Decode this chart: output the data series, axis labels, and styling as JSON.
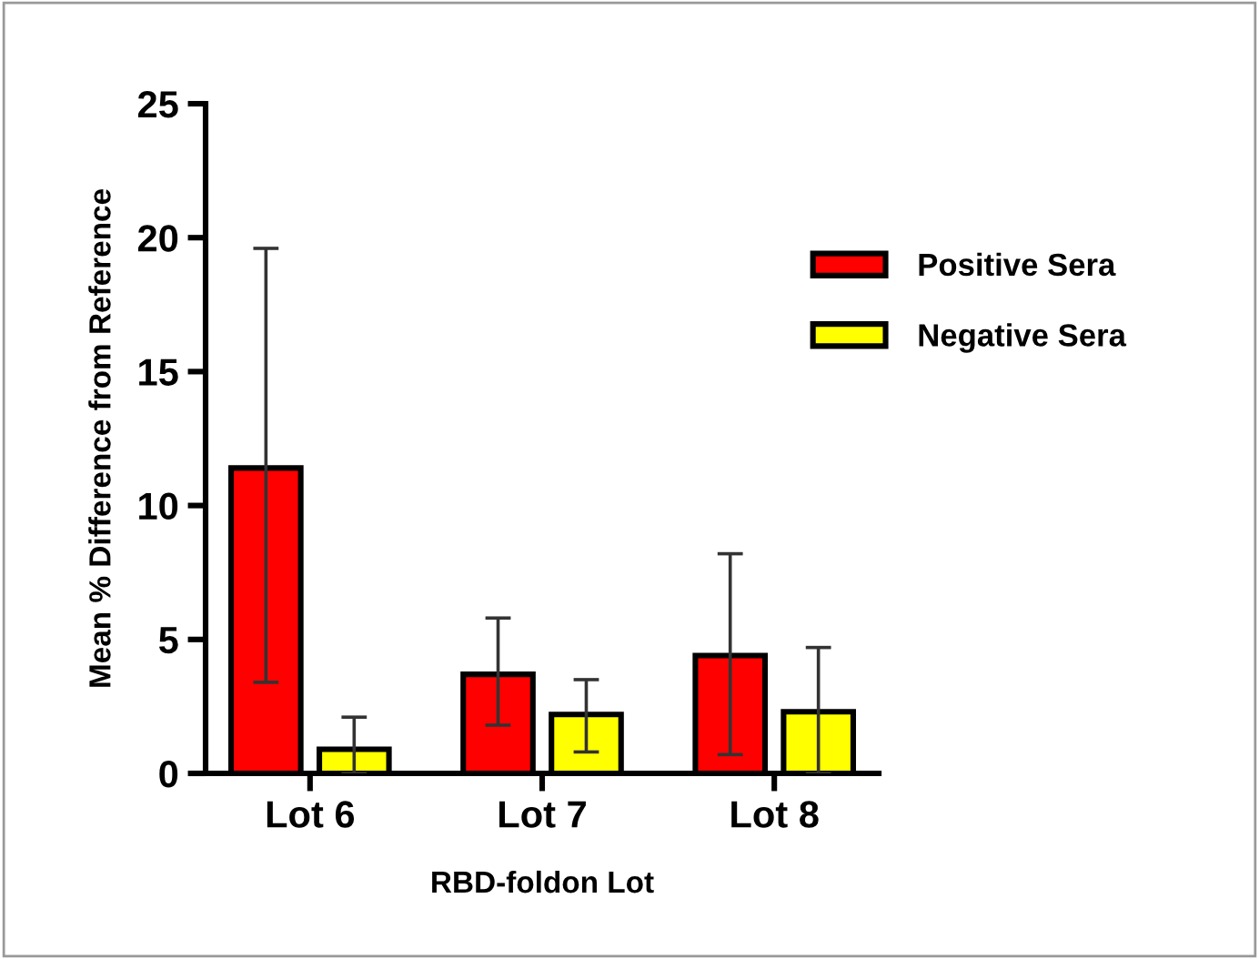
{
  "chart_data": {
    "type": "bar",
    "xlabel": "RBD-foldon Lot",
    "ylabel": "Mean % Difference from Reference",
    "categories": [
      "Lot 6",
      "Lot 7",
      "Lot 8"
    ],
    "series": [
      {
        "name": "Positive Sera",
        "color": "#ff0000",
        "values": [
          11.4,
          3.7,
          4.4
        ],
        "errors": [
          [
            3.4,
            19.6
          ],
          [
            1.8,
            5.8
          ],
          [
            0.7,
            8.2
          ]
        ]
      },
      {
        "name": "Negative Sera",
        "color": "#ffff00",
        "values": [
          0.9,
          2.2,
          2.3
        ],
        "errors": [
          [
            0,
            2.1
          ],
          [
            0.8,
            3.5
          ],
          [
            0,
            4.7
          ]
        ]
      }
    ],
    "ylim": [
      0,
      25
    ],
    "yticks": [
      0,
      5,
      10,
      15,
      20,
      25
    ],
    "grid": false,
    "legend": "top right"
  }
}
